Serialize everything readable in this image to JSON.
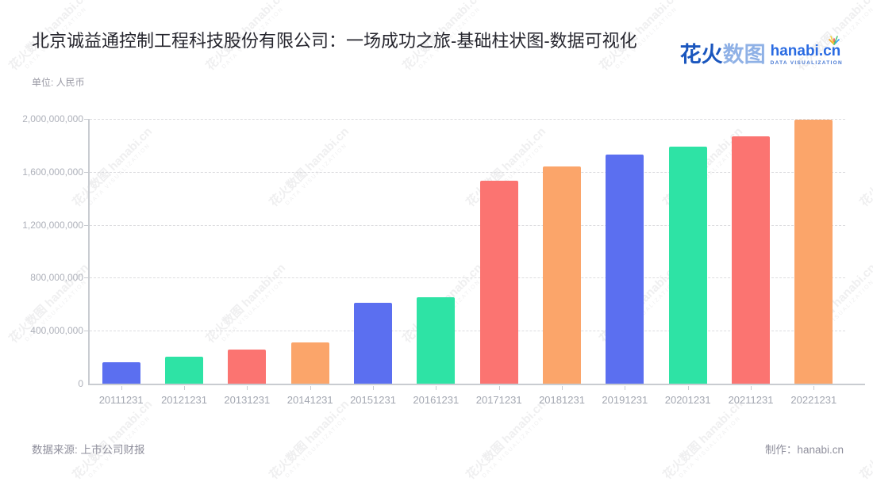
{
  "header": {
    "title": "北京诚益通控制工程科技股份有限公司：一场成功之旅-基础柱状图-数据可视化",
    "subtitle": "单位: 人民币"
  },
  "logo": {
    "cn_bold": "花火",
    "cn_light": "数图",
    "latin": "hanabi.cn",
    "tagline": "DATA VISUALIZATION",
    "spark_colors": [
      "#f0494c",
      "#f5a623",
      "#f3d03e",
      "#4fc878",
      "#38a0f0"
    ]
  },
  "watermark": {
    "line1": "花火数图 hanabi.cn",
    "line2": "DATA VISUALIZATION"
  },
  "footer": {
    "source": "数据来源: 上市公司财报",
    "credit": "制作：hanabi.cn"
  },
  "chart_data": {
    "type": "bar",
    "title": "北京诚益通控制工程科技股份有限公司：一场成功之旅-基础柱状图-数据可视化",
    "unit_label": "单位: 人民币",
    "categories": [
      "20111231",
      "20121231",
      "20131231",
      "20141231",
      "20151231",
      "20161231",
      "20171231",
      "20181231",
      "20191231",
      "20201231",
      "20211231",
      "20221231"
    ],
    "values": [
      160000000,
      205000000,
      260000000,
      312000000,
      612000000,
      655000000,
      1535000000,
      1642000000,
      1728000000,
      1788000000,
      1866000000,
      1995000000
    ],
    "palette": [
      "#5b6ff0",
      "#2ee3a5",
      "#fb7471",
      "#fba56a"
    ],
    "ylim": [
      0,
      2000000000
    ],
    "ytick_interval": 400000000,
    "ytick_labels": [
      "0",
      "400,000,000",
      "800,000,000",
      "1,200,000,000",
      "1,600,000,000",
      "2,000,000,000"
    ],
    "xlabel": "",
    "ylabel": "人民币",
    "grid": "horizontal-dashed",
    "legend": "none"
  }
}
